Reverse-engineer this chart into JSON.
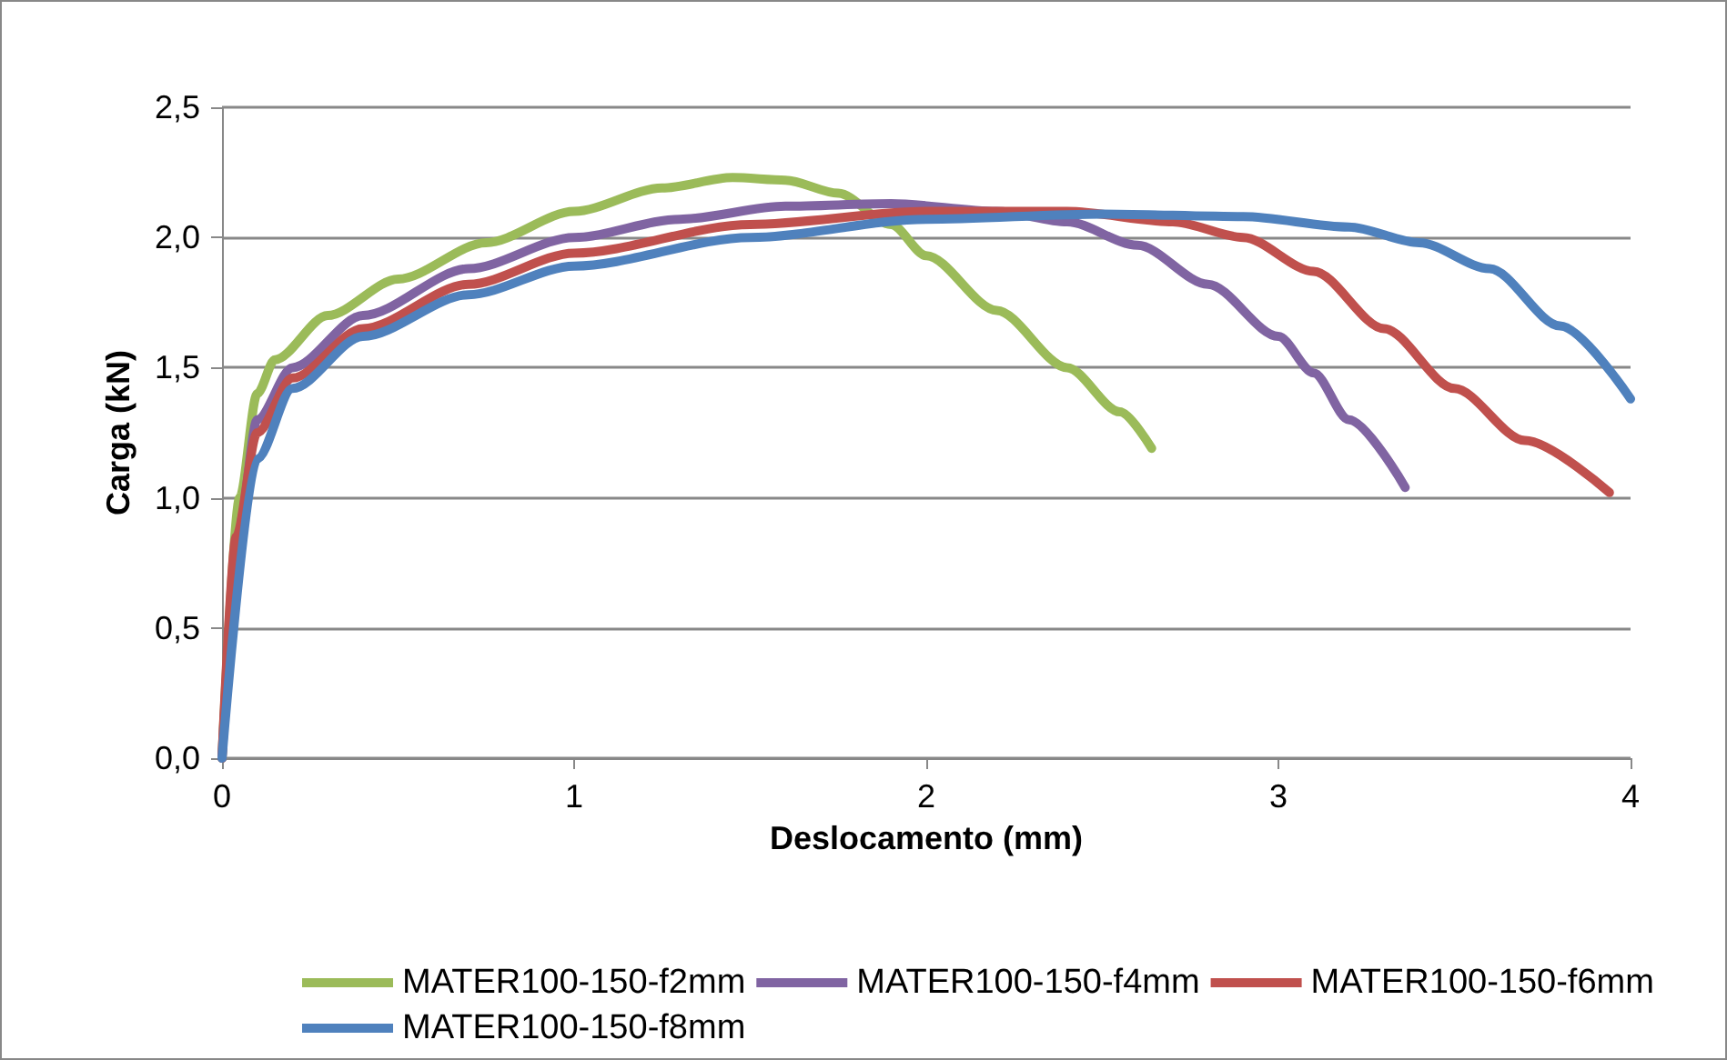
{
  "chart_data": {
    "type": "line",
    "xlabel": "Deslocamento (mm)",
    "ylabel": "Carga (kN)",
    "xlim": [
      0,
      4
    ],
    "xticks": [
      0,
      1,
      2,
      3,
      4
    ],
    "ylim": [
      0,
      2.5
    ],
    "yticks": [
      {
        "value": 0,
        "label": "0,0"
      },
      {
        "value": 0.5,
        "label": "0,5"
      },
      {
        "value": 1,
        "label": "1,0"
      },
      {
        "value": 1.5,
        "label": "1,5"
      },
      {
        "value": 2,
        "label": "2,0"
      },
      {
        "value": 2.5,
        "label": "2,5"
      }
    ],
    "grid": "y",
    "legend": "bottom",
    "marker": "none",
    "line_style": "solid",
    "series": [
      {
        "name": "MATER100-150-f2mm",
        "color": "#9bbb59",
        "x": [
          0,
          0.05,
          0.1,
          0.15,
          0.3,
          0.5,
          0.75,
          1.0,
          1.25,
          1.45,
          1.6,
          1.75,
          1.9,
          2.0,
          2.2,
          2.4,
          2.55,
          2.64
        ],
        "values": [
          0,
          1.0,
          1.4,
          1.53,
          1.7,
          1.84,
          1.98,
          2.1,
          2.19,
          2.23,
          2.22,
          2.17,
          2.05,
          1.93,
          1.72,
          1.5,
          1.33,
          1.19
        ]
      },
      {
        "name": "MATER100-150-f4mm",
        "color": "#8064a2",
        "x": [
          0,
          0.05,
          0.1,
          0.2,
          0.4,
          0.7,
          1.0,
          1.3,
          1.6,
          1.9,
          2.2,
          2.4,
          2.6,
          2.8,
          3.0,
          3.1,
          3.2,
          3.36
        ],
        "values": [
          0,
          0.9,
          1.3,
          1.5,
          1.7,
          1.88,
          2.0,
          2.07,
          2.12,
          2.13,
          2.1,
          2.06,
          1.97,
          1.82,
          1.62,
          1.48,
          1.3,
          1.04
        ]
      },
      {
        "name": "MATER100-150-f6mm",
        "color": "#c0504d",
        "x": [
          0,
          0.04,
          0.1,
          0.2,
          0.4,
          0.7,
          1.0,
          1.5,
          2.0,
          2.4,
          2.7,
          2.9,
          3.1,
          3.3,
          3.5,
          3.7,
          3.94
        ],
        "values": [
          0,
          0.85,
          1.25,
          1.46,
          1.65,
          1.82,
          1.94,
          2.05,
          2.1,
          2.1,
          2.06,
          2.0,
          1.87,
          1.65,
          1.42,
          1.22,
          1.02
        ]
      },
      {
        "name": "MATER100-150-f8mm",
        "color": "#4f81bd",
        "x": [
          0,
          0.1,
          0.2,
          0.4,
          0.7,
          1.0,
          1.5,
          2.0,
          2.5,
          2.9,
          3.2,
          3.4,
          3.6,
          3.8,
          4.0
        ],
        "values": [
          0,
          1.15,
          1.42,
          1.62,
          1.78,
          1.89,
          2.0,
          2.07,
          2.09,
          2.08,
          2.04,
          1.98,
          1.88,
          1.66,
          1.38
        ]
      }
    ]
  }
}
